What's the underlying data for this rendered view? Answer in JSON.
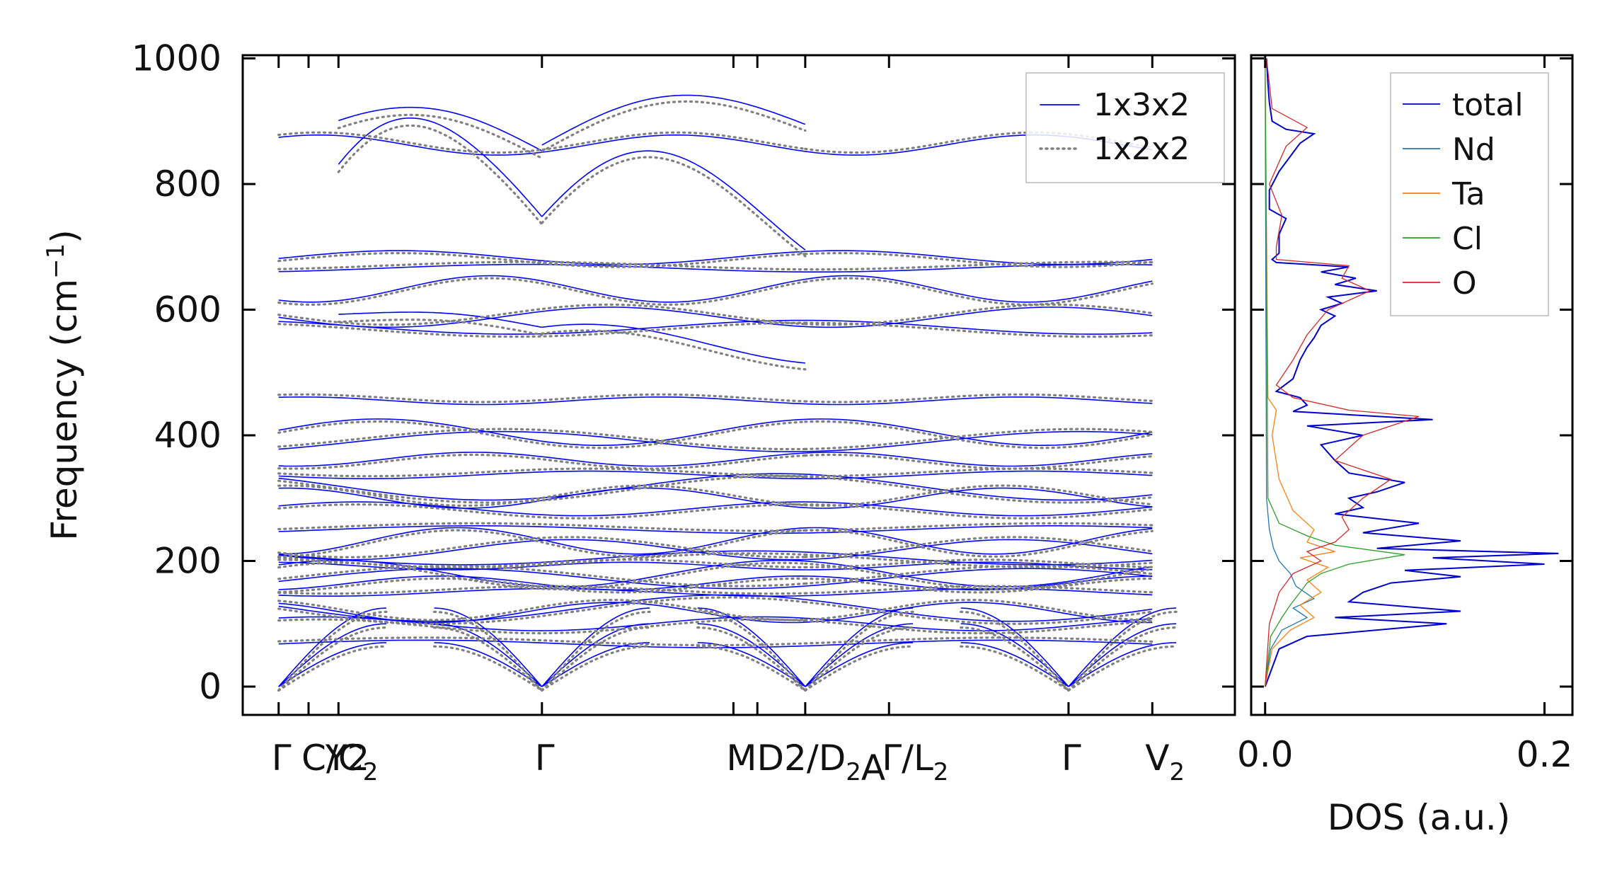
{
  "chart_data": [
    {
      "type": "line",
      "title": "",
      "ylabel": "Frequency (cm⁻¹)",
      "ylabel_parts": {
        "main": "Frequency (cm",
        "sup": "−1",
        "close": ")"
      },
      "xlabel": "",
      "ylim": [
        -45,
        1005
      ],
      "yticks": [
        0,
        200,
        400,
        600,
        800,
        1000
      ],
      "ytick_labels": [
        "0",
        "200",
        "400",
        "600",
        "800",
        "1000"
      ],
      "kpath_positions": [
        0,
        0.25,
        0.5,
        2.2,
        3.8,
        4.0,
        4.4,
        5.1,
        6.6,
        7.3
      ],
      "xlim": [
        -0.3,
        7.99
      ],
      "path_breaks": [
        4.4
      ],
      "kpoint_labels": [
        {
          "x": 0,
          "parts": [
            {
              "t": "Γ"
            }
          ]
        },
        {
          "x": 0.25,
          "parts": [
            {
              "t": "C"
            },
            {
              "t": "/C",
              "sub": "2"
            }
          ]
        },
        {
          "x": 0.45,
          "parts": [
            {
              "t": "Y"
            },
            {
              "t": "2"
            }
          ]
        },
        {
          "x": 2.2,
          "parts": [
            {
              "t": "Γ"
            }
          ]
        },
        {
          "x": 3.8,
          "parts": [
            {
              "t": "M"
            },
            {
              "t": "D"
            },
            {
              "t": "2"
            },
            {
              "t": "/D",
              "sub": "2"
            },
            {
              "t": "A"
            }
          ]
        },
        {
          "x": 5.1,
          "parts": [
            {
              "t": "Γ"
            },
            {
              "t": "/L",
              "sub": "2"
            }
          ]
        },
        {
          "x": 6.6,
          "parts": [
            {
              "t": "Γ"
            }
          ]
        },
        {
          "x": 7.3,
          "parts": [
            {
              "t": "V",
              "sub": "2"
            }
          ]
        }
      ],
      "kpoint_label_text": [
        "Γ",
        "C",
        "/C",
        "2",
        "Y",
        "2",
        "Γ",
        "M",
        "D",
        "2",
        "/D",
        "2",
        "A",
        "Γ",
        "/L",
        "2",
        "Γ",
        "V",
        "2"
      ],
      "series": [
        {
          "name": "1x3x2",
          "color": "#0000ff",
          "style": "solid"
        },
        {
          "name": "1x2x2",
          "color": "#808080",
          "style": "dotted"
        }
      ],
      "flat_bands_cm1": [
        68,
        100,
        118,
        125,
        150,
        165,
        172,
        180,
        192,
        205,
        218,
        232,
        250,
        283,
        300,
        318,
        337,
        362,
        390,
        405,
        455,
        572,
        588,
        633,
        666,
        683,
        862
      ],
      "gamma_dispersive_bands_cm1": [
        {
          "from": 862,
          "peak": 922,
          "to": 853
        },
        {
          "from": 683,
          "peak": 905,
          "to": 748
        },
        {
          "from": 588,
          "peak": 596,
          "to": 572
        }
      ],
      "high_branch_segment2_cm1": [
        {
          "from": 862,
          "peak": 935,
          "to": 895
        },
        {
          "from": 748,
          "peak": 895,
          "to": 695
        },
        {
          "from": 572,
          "peak": 590,
          "to": 515
        }
      ],
      "acoustic_max_cm1": 125
    },
    {
      "type": "line",
      "title": "",
      "xlabel": "DOS (a.u.)",
      "ylabel": "",
      "xlim": [
        -0.01,
        0.22
      ],
      "xticks": [
        0.0,
        0.2
      ],
      "xtick_labels": [
        "0.0",
        "0.2"
      ],
      "ylim": [
        -45,
        1005
      ],
      "series": [
        {
          "name": "total",
          "color": "#0000cc",
          "freq": [
            0,
            60,
            80,
            100,
            110,
            120,
            135,
            150,
            165,
            175,
            185,
            195,
            205,
            212,
            220,
            232,
            245,
            260,
            275,
            285,
            300,
            310,
            325,
            340,
            360,
            385,
            400,
            415,
            425,
            438,
            448,
            460,
            470,
            490,
            520,
            540,
            555,
            575,
            590,
            600,
            610,
            620,
            630,
            640,
            650,
            660,
            668,
            675,
            680,
            690,
            720,
            745,
            760,
            790,
            820,
            850,
            865,
            880,
            887,
            900,
            930,
            960,
            1000
          ],
          "dos": [
            0.0,
            0.01,
            0.03,
            0.13,
            0.05,
            0.14,
            0.06,
            0.07,
            0.09,
            0.14,
            0.1,
            0.2,
            0.12,
            0.21,
            0.08,
            0.14,
            0.07,
            0.11,
            0.05,
            0.07,
            0.06,
            0.08,
            0.1,
            0.06,
            0.05,
            0.04,
            0.07,
            0.03,
            0.12,
            0.02,
            0.03,
            0.025,
            0.008,
            0.02,
            0.025,
            0.03,
            0.035,
            0.04,
            0.05,
            0.04,
            0.055,
            0.045,
            0.08,
            0.05,
            0.065,
            0.04,
            0.06,
            0.008,
            0.005,
            0.01,
            0.01,
            0.015,
            0.003,
            0.003,
            0.01,
            0.02,
            0.025,
            0.035,
            0.015,
            0.005,
            0.003,
            0.002,
            0.001
          ]
        },
        {
          "name": "Nd",
          "color": "#1f77b4",
          "freq": [
            0,
            60,
            90,
            110,
            125,
            140,
            160,
            180,
            200,
            220,
            250,
            300,
            1000
          ],
          "dos": [
            0.0,
            0.004,
            0.012,
            0.03,
            0.02,
            0.035,
            0.022,
            0.018,
            0.01,
            0.006,
            0.003,
            0.001,
            0.0
          ]
        },
        {
          "name": "Ta",
          "color": "#ff7f0e",
          "freq": [
            0,
            60,
            90,
            110,
            130,
            150,
            170,
            190,
            205,
            215,
            230,
            250,
            280,
            330,
            400,
            440,
            460,
            1000
          ],
          "dos": [
            0.0,
            0.005,
            0.018,
            0.035,
            0.025,
            0.04,
            0.03,
            0.045,
            0.025,
            0.05,
            0.03,
            0.035,
            0.02,
            0.01,
            0.005,
            0.008,
            0.002,
            0.0
          ]
        },
        {
          "name": "Cl",
          "color": "#2ca02c",
          "freq": [
            0,
            80,
            110,
            130,
            150,
            165,
            180,
            195,
            210,
            225,
            240,
            260,
            300,
            1000
          ],
          "dos": [
            0.0,
            0.004,
            0.012,
            0.018,
            0.025,
            0.03,
            0.04,
            0.06,
            0.1,
            0.05,
            0.03,
            0.01,
            0.002,
            0.0
          ]
        },
        {
          "name": "O",
          "color": "#d62728",
          "freq": [
            0,
            100,
            150,
            180,
            200,
            215,
            230,
            250,
            270,
            300,
            330,
            360,
            400,
            430,
            440,
            460,
            480,
            520,
            560,
            600,
            630,
            650,
            670,
            680,
            700,
            750,
            800,
            860,
            890,
            920,
            1000
          ],
          "dos": [
            0.0,
            0.003,
            0.01,
            0.02,
            0.04,
            0.03,
            0.05,
            0.06,
            0.055,
            0.07,
            0.09,
            0.05,
            0.07,
            0.11,
            0.06,
            0.02,
            0.008,
            0.02,
            0.03,
            0.045,
            0.075,
            0.055,
            0.06,
            0.008,
            0.008,
            0.012,
            0.003,
            0.015,
            0.03,
            0.005,
            0.001
          ]
        }
      ]
    }
  ]
}
